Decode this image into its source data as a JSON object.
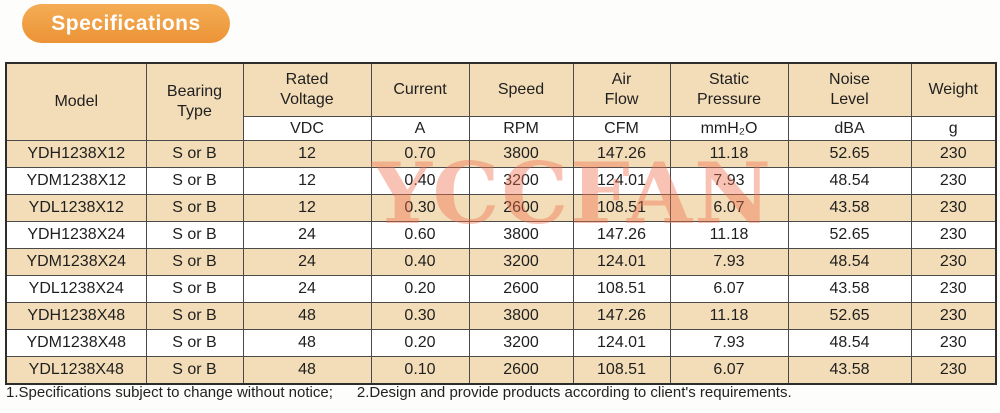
{
  "banner": {
    "label": "Specifications"
  },
  "watermark": {
    "text": "YCCFAN"
  },
  "colors": {
    "accent_orange": "#f0a14b",
    "row_beige": "#f3ddb8",
    "watermark_salmon": "#ee704e",
    "border_gray": "#4a4a4a"
  },
  "table": {
    "columns": [
      {
        "label": "Model",
        "unit": null
      },
      {
        "label": "Bearing\nType",
        "unit": null
      },
      {
        "label": "Rated\nVoltage",
        "unit": "VDC"
      },
      {
        "label": "Current",
        "unit": "A"
      },
      {
        "label": "Speed",
        "unit": "RPM"
      },
      {
        "label": "Air\nFlow",
        "unit": "CFM"
      },
      {
        "label": "Static\nPressure",
        "unit": "mmH₂O"
      },
      {
        "label": "Noise\nLevel",
        "unit": "dBA"
      },
      {
        "label": "Weight",
        "unit": "g"
      }
    ],
    "rows": [
      [
        "YDH1238X12",
        "S or B",
        "12",
        "0.70",
        "3800",
        "147.26",
        "11.18",
        "52.65",
        "230"
      ],
      [
        "YDM1238X12",
        "S or B",
        "12",
        "0.40",
        "3200",
        "124.01",
        "7.93",
        "48.54",
        "230"
      ],
      [
        "YDL1238X12",
        "S or B",
        "12",
        "0.30",
        "2600",
        "108.51",
        "6.07",
        "43.58",
        "230"
      ],
      [
        "YDH1238X24",
        "S or B",
        "24",
        "0.60",
        "3800",
        "147.26",
        "11.18",
        "52.65",
        "230"
      ],
      [
        "YDM1238X24",
        "S or B",
        "24",
        "0.40",
        "3200",
        "124.01",
        "7.93",
        "48.54",
        "230"
      ],
      [
        "YDL1238X24",
        "S or B",
        "24",
        "0.20",
        "2600",
        "108.51",
        "6.07",
        "43.58",
        "230"
      ],
      [
        "YDH1238X48",
        "S or B",
        "48",
        "0.30",
        "3800",
        "147.26",
        "11.18",
        "52.65",
        "230"
      ],
      [
        "YDM1238X48",
        "S or B",
        "48",
        "0.20",
        "3200",
        "124.01",
        "7.93",
        "48.54",
        "230"
      ],
      [
        "YDL1238X48",
        "S or B",
        "48",
        "0.10",
        "2600",
        "108.51",
        "6.07",
        "43.58",
        "230"
      ]
    ]
  },
  "notes": {
    "note1": "1.Specifications subject to change without notice;",
    "note2": "2.Design and provide products according to client's requirements."
  }
}
